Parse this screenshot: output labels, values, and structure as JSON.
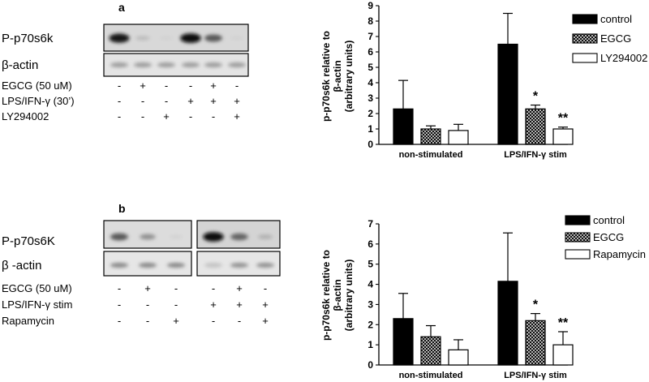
{
  "colors": {
    "control": "#000000",
    "egcg_pattern": "hatched-dark",
    "other": "#ffffff",
    "axis": "#000000"
  },
  "panel_a": {
    "letter": "a",
    "blot": {
      "row_labels": [
        "P-p70s6k",
        "β-actin"
      ],
      "conditions": [
        {
          "label": "EGCG (50 uM)",
          "signs": [
            "-",
            "+",
            "-",
            "-",
            "+",
            "-"
          ]
        },
        {
          "label": "LPS/IFN-γ (30’)",
          "signs": [
            "-",
            "-",
            "-",
            "+",
            "+",
            "+"
          ]
        },
        {
          "label": "LY294002",
          "signs": [
            "-",
            "-",
            "+",
            "-",
            "-",
            "+"
          ]
        }
      ],
      "band_intensity_p70": [
        0.9,
        0.15,
        0.05,
        0.95,
        0.6,
        0.05
      ],
      "band_intensity_actin": [
        0.35,
        0.35,
        0.35,
        0.35,
        0.35,
        0.35
      ]
    }
  },
  "panel_b": {
    "letter": "b",
    "blot": {
      "row_labels": [
        "P-p70s6K",
        "β -actin"
      ],
      "conditions": [
        {
          "label": "EGCG (50 uM)",
          "signs": [
            "-",
            "+",
            "-",
            "-",
            "+",
            "-"
          ]
        },
        {
          "label": "LPS/IFN-γ stim",
          "signs": [
            "-",
            "-",
            "-",
            "+",
            "+",
            "+"
          ]
        },
        {
          "label": "Rapamycin",
          "signs": [
            "-",
            "-",
            "+",
            "-",
            "-",
            "+"
          ]
        }
      ],
      "band_intensity_p70": [
        0.6,
        0.35,
        0.05,
        0.95,
        0.55,
        0.2
      ],
      "band_intensity_actin": [
        0.45,
        0.45,
        0.45,
        0.15,
        0.4,
        0.4
      ]
    }
  },
  "chart_data": [
    {
      "type": "bar",
      "title": "",
      "ylabel": "p-p70s6k relative to β-actin (arbitrary units)",
      "ylabel_lines": [
        "p-p70s6k relative to",
        "β-actin",
        "(arbitrary units)"
      ],
      "xlabel": "",
      "ylim": [
        0,
        9
      ],
      "yticks": [
        0,
        1,
        2,
        3,
        4,
        5,
        6,
        7,
        8,
        9
      ],
      "categories": [
        "non-stimulated",
        "LPS/IFN-γ stim"
      ],
      "series": [
        {
          "name": "control",
          "values": [
            2.3,
            6.5
          ],
          "errors": [
            1.85,
            2.0
          ]
        },
        {
          "name": "EGCG",
          "values": [
            1.0,
            2.3
          ],
          "errors": [
            0.2,
            0.25
          ]
        },
        {
          "name": "LY294002",
          "values": [
            0.9,
            1.0
          ],
          "errors": [
            0.4,
            0.12
          ]
        }
      ],
      "annotations": [
        {
          "category": 1,
          "series": 1,
          "text": "*"
        },
        {
          "category": 1,
          "series": 2,
          "text": "**"
        }
      ],
      "legend": "top-right",
      "grid": false
    },
    {
      "type": "bar",
      "title": "",
      "ylabel": "p-p70s6k relative to β-actin (arbitrary units)",
      "ylabel_lines": [
        "p-p70s6k relative to",
        "β-actin",
        "(arbitrary units)"
      ],
      "xlabel": "",
      "ylim": [
        0,
        7
      ],
      "yticks": [
        0,
        1,
        2,
        3,
        4,
        5,
        6,
        7
      ],
      "categories": [
        "non-stimulated",
        "LPS/IFN-γ stim"
      ],
      "series": [
        {
          "name": "control",
          "values": [
            2.3,
            4.15
          ],
          "errors": [
            1.25,
            2.4
          ]
        },
        {
          "name": "EGCG",
          "values": [
            1.4,
            2.2
          ],
          "errors": [
            0.55,
            0.35
          ]
        },
        {
          "name": "Rapamycin",
          "values": [
            0.75,
            1.0
          ],
          "errors": [
            0.5,
            0.65
          ]
        }
      ],
      "annotations": [
        {
          "category": 1,
          "series": 1,
          "text": "*"
        },
        {
          "category": 1,
          "series": 2,
          "text": "**"
        }
      ],
      "legend": "top-right",
      "grid": false
    }
  ]
}
